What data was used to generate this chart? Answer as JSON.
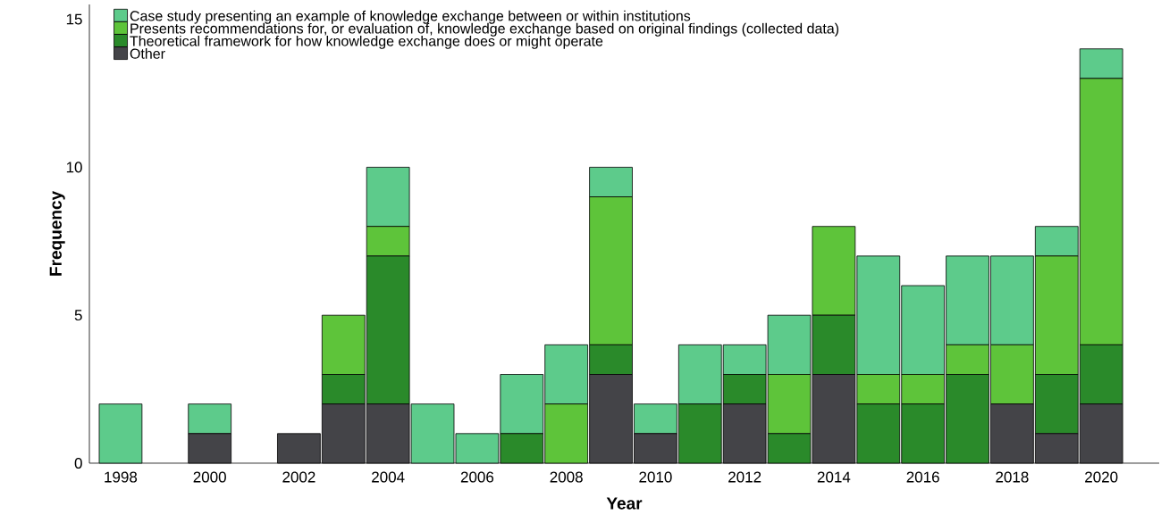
{
  "chart_data": {
    "type": "bar",
    "stacked": true,
    "xlabel": "Year",
    "ylabel": "Frequency",
    "x": [
      1998,
      1999,
      2000,
      2001,
      2002,
      2003,
      2004,
      2005,
      2006,
      2007,
      2008,
      2009,
      2010,
      2011,
      2012,
      2013,
      2014,
      2015,
      2016,
      2017,
      2018,
      2019,
      2020
    ],
    "series": [
      {
        "name": "Other",
        "color": "#444448",
        "values": [
          0,
          0,
          1,
          0,
          1,
          2,
          2,
          0,
          0,
          0,
          0,
          3,
          1,
          0,
          2,
          0,
          3,
          0,
          0,
          0,
          2,
          1,
          2
        ]
      },
      {
        "name": "Theoretical framework for how knowledge exchange does or might operate",
        "color": "#2a8a2a",
        "values": [
          0,
          0,
          0,
          0,
          0,
          1,
          5,
          0,
          0,
          1,
          0,
          1,
          0,
          2,
          1,
          1,
          2,
          2,
          2,
          3,
          0,
          2,
          2
        ]
      },
      {
        "name": "Presents recommendations for, or evaluation of, knowledge exchange based on original findings (collected data)",
        "color": "#5ec43a",
        "values": [
          0,
          0,
          0,
          0,
          0,
          2,
          1,
          0,
          0,
          0,
          2,
          5,
          0,
          0,
          0,
          2,
          3,
          1,
          1,
          1,
          2,
          4,
          9
        ]
      },
      {
        "name": "Case study presenting an example of knowledge exchange between or within institutions",
        "color": "#5dcb8b",
        "values": [
          2,
          0,
          1,
          0,
          0,
          0,
          2,
          2,
          1,
          2,
          2,
          1,
          1,
          2,
          1,
          2,
          0,
          4,
          3,
          3,
          3,
          1,
          1
        ]
      }
    ],
    "xlim": [
      1997.3,
      2021.3
    ],
    "ylim": [
      0,
      15.5
    ],
    "xticks": [
      1998,
      2000,
      2002,
      2004,
      2006,
      2008,
      2010,
      2012,
      2014,
      2016,
      2018,
      2020
    ],
    "yticks": [
      0,
      5,
      10,
      15
    ],
    "legend": "top left"
  }
}
